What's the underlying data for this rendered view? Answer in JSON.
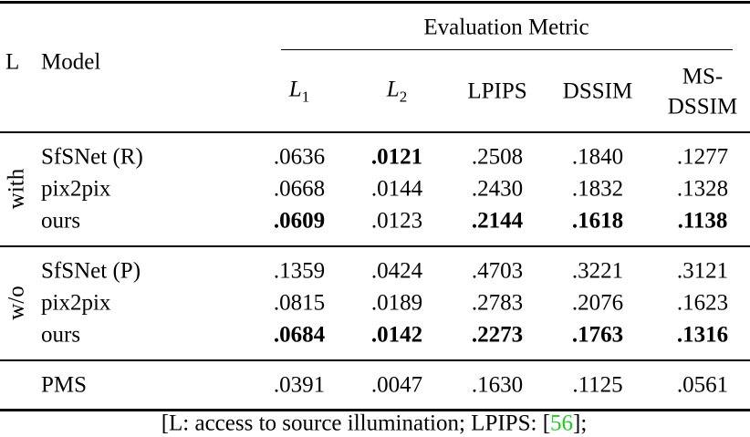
{
  "table": {
    "header": {
      "l": "L",
      "model": "Model",
      "group": "Evaluation Metric",
      "columns": [
        {
          "symbol": "L",
          "sub": "1"
        },
        {
          "symbol": "L",
          "sub": "2"
        },
        {
          "lines": [
            "LPIPS"
          ]
        },
        {
          "lines": [
            "DSSIM"
          ]
        },
        {
          "lines": [
            "MS-",
            "DSSIM"
          ]
        }
      ]
    },
    "groups": [
      {
        "label": "with",
        "rows": [
          {
            "model": "SfSNet (R)",
            "values": [
              ".0636",
              ".0121",
              ".2508",
              ".1840",
              ".1277"
            ],
            "bold": [
              false,
              true,
              false,
              false,
              false
            ]
          },
          {
            "model": "pix2pix",
            "values": [
              ".0668",
              ".0144",
              ".2430",
              ".1832",
              ".1328"
            ],
            "bold": [
              false,
              false,
              false,
              false,
              false
            ]
          },
          {
            "model": "ours",
            "values": [
              ".0609",
              ".0123",
              ".2144",
              ".1618",
              ".1138"
            ],
            "bold": [
              true,
              false,
              true,
              true,
              true
            ]
          }
        ]
      },
      {
        "label": "w/o",
        "rows": [
          {
            "model": "SfSNet (P)",
            "values": [
              ".1359",
              ".0424",
              ".4703",
              ".3221",
              ".3121"
            ],
            "bold": [
              false,
              false,
              false,
              false,
              false
            ]
          },
          {
            "model": "pix2pix",
            "values": [
              ".0815",
              ".0189",
              ".2783",
              ".2076",
              ".1623"
            ],
            "bold": [
              false,
              false,
              false,
              false,
              false
            ]
          },
          {
            "model": "ours",
            "values": [
              ".0684",
              ".0142",
              ".2273",
              ".1763",
              ".1316"
            ],
            "bold": [
              true,
              true,
              true,
              true,
              true
            ]
          }
        ]
      },
      {
        "label": null,
        "rows": [
          {
            "model": "PMS",
            "values": [
              ".0391",
              ".0047",
              ".1630",
              ".1125",
              ".0561"
            ],
            "bold": [
              false,
              false,
              false,
              false,
              false
            ]
          }
        ]
      }
    ]
  },
  "caption": {
    "before": "[L: access to source illumination; LPIPS: [",
    "ref": "56",
    "after": "];",
    "ref_color": "#22cc22"
  }
}
